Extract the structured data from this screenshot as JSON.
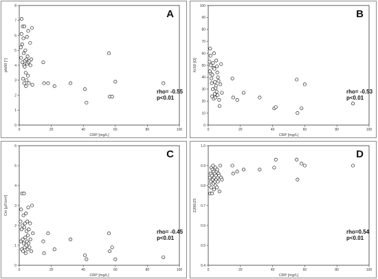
{
  "chart_data": [
    {
      "type": "scatter",
      "panel": "A",
      "xlabel": "CRP [mg/L]",
      "ylabel": "phi50 [°]",
      "xlim": [
        0,
        100
      ],
      "ylim": [
        0,
        8
      ],
      "xticks": [
        "0",
        "20",
        "40",
        "60",
        "80",
        "100"
      ],
      "yticks": [
        "0",
        "1",
        "2",
        "3",
        "4",
        "5",
        "6",
        "7",
        "8"
      ],
      "annotation": [
        "rho= -0.55",
        "p<0.01"
      ],
      "points": [
        [
          1.0,
          5.2
        ],
        [
          1.2,
          4.5
        ],
        [
          1.4,
          6.1
        ],
        [
          1.5,
          7.1
        ],
        [
          1.8,
          5.4
        ],
        [
          2.0,
          4.2
        ],
        [
          2.2,
          6.6
        ],
        [
          2.4,
          3.1
        ],
        [
          2.6,
          5.8
        ],
        [
          2.8,
          4.8
        ],
        [
          3.0,
          4.0
        ],
        [
          3.1,
          2.8
        ],
        [
          3.2,
          6.6
        ],
        [
          3.4,
          3.9
        ],
        [
          3.6,
          4.3
        ],
        [
          3.8,
          5.0
        ],
        [
          4.0,
          3.5
        ],
        [
          4.2,
          2.6
        ],
        [
          4.4,
          4.4
        ],
        [
          4.6,
          3.0
        ],
        [
          4.8,
          5.9
        ],
        [
          5.0,
          4.1
        ],
        [
          5.2,
          4.6
        ],
        [
          5.4,
          3.3
        ],
        [
          5.6,
          6.3
        ],
        [
          5.8,
          4.2
        ],
        [
          6.0,
          2.8
        ],
        [
          6.4,
          4.3
        ],
        [
          6.8,
          5.5
        ],
        [
          7.0,
          4.0
        ],
        [
          7.5,
          4.4
        ],
        [
          8.0,
          6.5
        ],
        [
          8.2,
          2.7
        ],
        [
          15.0,
          4.2
        ],
        [
          15.5,
          2.8
        ],
        [
          18.0,
          2.8
        ],
        [
          22.0,
          2.6
        ],
        [
          32.0,
          2.8
        ],
        [
          41.0,
          2.4
        ],
        [
          42.0,
          1.5
        ],
        [
          56.0,
          4.8
        ],
        [
          56.5,
          1.9
        ],
        [
          58.0,
          1.9
        ],
        [
          60.0,
          2.9
        ],
        [
          90.0,
          2.8
        ]
      ]
    },
    {
      "type": "scatter",
      "panel": "B",
      "xlabel": "CRP [mg/L]",
      "ylabel": "Xc50 [Ω]",
      "xlim": [
        0,
        100
      ],
      "ylim": [
        0,
        100
      ],
      "xticks": [
        "0",
        "20",
        "40",
        "60",
        "80",
        "100"
      ],
      "yticks": [
        "0",
        "10",
        "20",
        "30",
        "40",
        "50",
        "60",
        "70",
        "80",
        "90",
        "100"
      ],
      "annotation": [
        "rho= -0.53",
        "p<0.01"
      ],
      "points": [
        [
          0.8,
          53
        ],
        [
          1.0,
          45
        ],
        [
          1.2,
          64
        ],
        [
          1.4,
          58
        ],
        [
          1.6,
          50
        ],
        [
          1.8,
          43
        ],
        [
          2.0,
          39
        ],
        [
          2.2,
          35
        ],
        [
          2.4,
          24
        ],
        [
          2.6,
          42
        ],
        [
          2.8,
          30
        ],
        [
          3.0,
          52
        ],
        [
          3.2,
          48
        ],
        [
          3.4,
          22
        ],
        [
          3.6,
          60
        ],
        [
          3.8,
          47
        ],
        [
          4.0,
          26
        ],
        [
          4.2,
          36
        ],
        [
          4.4,
          23
        ],
        [
          4.6,
          31
        ],
        [
          4.8,
          33
        ],
        [
          5.0,
          54
        ],
        [
          5.2,
          28
        ],
        [
          5.4,
          49
        ],
        [
          5.6,
          44
        ],
        [
          5.8,
          25
        ],
        [
          6.0,
          40
        ],
        [
          6.4,
          37
        ],
        [
          6.8,
          21
        ],
        [
          7.0,
          16
        ],
        [
          7.5,
          34
        ],
        [
          8.0,
          51
        ],
        [
          8.5,
          27
        ],
        [
          15.0,
          39
        ],
        [
          15.5,
          23
        ],
        [
          18.0,
          21
        ],
        [
          22.0,
          27
        ],
        [
          32.0,
          23
        ],
        [
          41.0,
          14
        ],
        [
          42.0,
          15
        ],
        [
          55.0,
          38
        ],
        [
          55.5,
          10
        ],
        [
          58.0,
          14
        ],
        [
          60.0,
          34
        ],
        [
          90.0,
          18
        ]
      ]
    },
    {
      "type": "scatter",
      "panel": "C",
      "xlabel": "CRP [mg/L]",
      "ylabel": "Cm [µF/cm²]",
      "xlim": [
        0,
        100
      ],
      "ylim": [
        0,
        6
      ],
      "xticks": [
        "0",
        "20",
        "40",
        "60",
        "80",
        "100"
      ],
      "yticks": [
        "0",
        "1",
        "2",
        "3",
        "4",
        "5",
        "6"
      ],
      "annotation": [
        "rho= -0.45",
        "p<0.01"
      ],
      "points": [
        [
          0.8,
          2.2
        ],
        [
          1.0,
          1.2
        ],
        [
          1.2,
          2.8
        ],
        [
          1.4,
          1.8
        ],
        [
          1.6,
          0.8
        ],
        [
          1.8,
          3.6
        ],
        [
          2.0,
          2.0
        ],
        [
          2.2,
          1.3
        ],
        [
          2.4,
          0.7
        ],
        [
          2.6,
          2.5
        ],
        [
          2.8,
          1.1
        ],
        [
          3.0,
          3.6
        ],
        [
          3.2,
          1.9
        ],
        [
          3.4,
          0.9
        ],
        [
          3.6,
          2.1
        ],
        [
          3.8,
          1.4
        ],
        [
          4.0,
          0.6
        ],
        [
          4.2,
          2.6
        ],
        [
          4.4,
          1.0
        ],
        [
          4.6,
          1.7
        ],
        [
          4.8,
          1.2
        ],
        [
          5.0,
          2.2
        ],
        [
          5.2,
          0.8
        ],
        [
          5.4,
          1.5
        ],
        [
          5.6,
          2.9
        ],
        [
          5.8,
          1.1
        ],
        [
          6.0,
          1.8
        ],
        [
          6.4,
          0.9
        ],
        [
          6.8,
          2.1
        ],
        [
          7.0,
          1.3
        ],
        [
          7.5,
          0.7
        ],
        [
          8.0,
          3.0
        ],
        [
          8.5,
          1.6
        ],
        [
          15.0,
          1.2
        ],
        [
          15.5,
          0.6
        ],
        [
          18.0,
          1.6
        ],
        [
          22.0,
          0.8
        ],
        [
          32.0,
          1.3
        ],
        [
          41.0,
          0.5
        ],
        [
          42.0,
          0.3
        ],
        [
          56.0,
          1.6
        ],
        [
          56.5,
          0.7
        ],
        [
          58.0,
          0.9
        ],
        [
          60.0,
          0.3
        ],
        [
          90.0,
          0.4
        ]
      ]
    },
    {
      "type": "scatter",
      "panel": "D",
      "xlabel": "CRP [mg/L]",
      "ylabel": "Z200/Z5",
      "xlim": [
        0,
        100
      ],
      "ylim": [
        0.4,
        1.0
      ],
      "xticks": [
        "0",
        "20",
        "40",
        "60",
        "80",
        "100"
      ],
      "yticks": [
        "0.4",
        "0.5",
        "0.6",
        "0.7",
        "0.8",
        "0.9",
        "1.0"
      ],
      "annotation": [
        "rho=0.54",
        "p<0.01"
      ],
      "points": [
        [
          0.8,
          0.8
        ],
        [
          1.0,
          0.84
        ],
        [
          1.2,
          0.76
        ],
        [
          1.4,
          0.86
        ],
        [
          1.6,
          0.82
        ],
        [
          1.8,
          0.79
        ],
        [
          2.0,
          0.89
        ],
        [
          2.2,
          0.85
        ],
        [
          2.4,
          0.76
        ],
        [
          2.6,
          0.88
        ],
        [
          2.8,
          0.83
        ],
        [
          3.0,
          0.9
        ],
        [
          3.2,
          0.81
        ],
        [
          3.4,
          0.87
        ],
        [
          3.6,
          0.78
        ],
        [
          3.8,
          0.84
        ],
        [
          4.0,
          0.86
        ],
        [
          4.2,
          0.82
        ],
        [
          4.4,
          0.89
        ],
        [
          4.6,
          0.8
        ],
        [
          4.8,
          0.85
        ],
        [
          5.0,
          0.83
        ],
        [
          5.2,
          0.87
        ],
        [
          5.4,
          0.79
        ],
        [
          5.6,
          0.88
        ],
        [
          5.8,
          0.84
        ],
        [
          6.0,
          0.82
        ],
        [
          6.4,
          0.86
        ],
        [
          6.8,
          0.85
        ],
        [
          7.0,
          0.77
        ],
        [
          7.5,
          0.9
        ],
        [
          8.0,
          0.84
        ],
        [
          8.5,
          0.83
        ],
        [
          15.0,
          0.9
        ],
        [
          15.5,
          0.86
        ],
        [
          18.0,
          0.87
        ],
        [
          22.0,
          0.88
        ],
        [
          32.0,
          0.88
        ],
        [
          41.0,
          0.89
        ],
        [
          42.0,
          0.93
        ],
        [
          55.0,
          0.93
        ],
        [
          55.5,
          0.83
        ],
        [
          58.0,
          0.91
        ],
        [
          60.0,
          0.9
        ],
        [
          90.0,
          0.9
        ]
      ]
    }
  ]
}
